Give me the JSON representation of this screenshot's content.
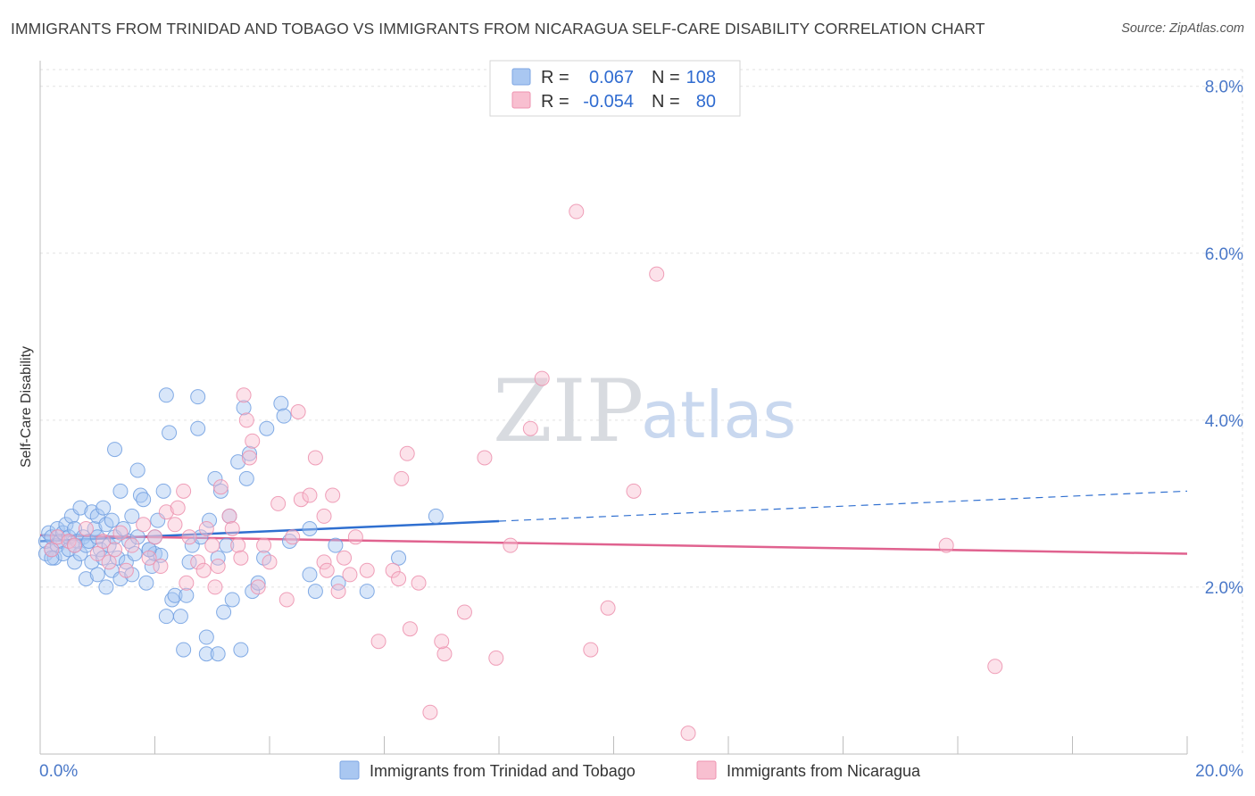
{
  "title": "IMMIGRANTS FROM TRINIDAD AND TOBAGO VS IMMIGRANTS FROM NICARAGUA SELF-CARE DISABILITY CORRELATION CHART",
  "source": "Source: ZipAtlas.com",
  "watermark": {
    "zip": "ZIP",
    "atlas": "atlas"
  },
  "legend": {
    "r_label": "R =",
    "n_label": "N =",
    "entries": [
      {
        "r": "0.067",
        "n": "108",
        "color": "#a9c7f1",
        "stroke": "#7da6e3"
      },
      {
        "r": "-0.054",
        "n": "80",
        "color": "#f8bfd0",
        "stroke": "#ee93b0"
      }
    ]
  },
  "chart_data": {
    "type": "scatter",
    "xlabel": "",
    "ylabel": "Self-Care Disability",
    "xlim": [
      0,
      20
    ],
    "ylim": [
      0,
      8.2
    ],
    "x_ticks": [
      {
        "v": 0,
        "label": "0.0%"
      },
      {
        "v": 20,
        "label": "20.0%"
      }
    ],
    "y_ticks": [
      {
        "v": 2,
        "label": "2.0%"
      },
      {
        "v": 4,
        "label": "4.0%"
      },
      {
        "v": 6,
        "label": "6.0%"
      },
      {
        "v": 8,
        "label": "8.0%"
      }
    ],
    "grid": true,
    "series": [
      {
        "name": "Immigrants from Trinidad and Tobago",
        "color": "#a9c7f1",
        "stroke": "#6f9de0",
        "trend": {
          "x0": 0,
          "y0": 2.55,
          "x1": 8,
          "y1": 2.79,
          "dash_x1": 20,
          "dash_y1": 3.15,
          "color": "#2f6fd0"
        },
        "points": [
          [
            0.1,
            2.4
          ],
          [
            0.1,
            2.55
          ],
          [
            0.15,
            2.65
          ],
          [
            0.2,
            2.45
          ],
          [
            0.2,
            2.6
          ],
          [
            0.25,
            2.35
          ],
          [
            0.3,
            2.5
          ],
          [
            0.3,
            2.7
          ],
          [
            0.35,
            2.55
          ],
          [
            0.4,
            2.4
          ],
          [
            0.4,
            2.65
          ],
          [
            0.45,
            2.75
          ],
          [
            0.5,
            2.6
          ],
          [
            0.5,
            2.45
          ],
          [
            0.55,
            2.85
          ],
          [
            0.6,
            2.3
          ],
          [
            0.6,
            2.7
          ],
          [
            0.65,
            2.55
          ],
          [
            0.7,
            2.95
          ],
          [
            0.7,
            2.4
          ],
          [
            0.75,
            2.6
          ],
          [
            0.8,
            2.1
          ],
          [
            0.8,
            2.5
          ],
          [
            0.85,
            2.55
          ],
          [
            0.9,
            2.9
          ],
          [
            0.9,
            2.3
          ],
          [
            0.95,
            2.7
          ],
          [
            1.0,
            2.15
          ],
          [
            1.0,
            2.85
          ],
          [
            1.0,
            2.6
          ],
          [
            1.05,
            2.45
          ],
          [
            1.1,
            2.95
          ],
          [
            1.1,
            2.35
          ],
          [
            1.15,
            2.0
          ],
          [
            1.15,
            2.75
          ],
          [
            1.2,
            2.5
          ],
          [
            1.25,
            2.2
          ],
          [
            1.25,
            2.8
          ],
          [
            1.3,
            2.6
          ],
          [
            1.3,
            3.65
          ],
          [
            1.35,
            2.35
          ],
          [
            1.4,
            3.15
          ],
          [
            1.4,
            2.1
          ],
          [
            1.45,
            2.7
          ],
          [
            1.5,
            2.3
          ],
          [
            1.55,
            2.55
          ],
          [
            1.6,
            2.15
          ],
          [
            1.6,
            2.85
          ],
          [
            1.65,
            2.4
          ],
          [
            1.7,
            3.4
          ],
          [
            1.7,
            2.6
          ],
          [
            1.75,
            3.1
          ],
          [
            1.8,
            3.05
          ],
          [
            1.85,
            2.05
          ],
          [
            1.9,
            2.45
          ],
          [
            1.95,
            2.25
          ],
          [
            2.0,
            2.6
          ],
          [
            2.0,
            2.4
          ],
          [
            2.05,
            2.8
          ],
          [
            2.1,
            2.38
          ],
          [
            2.15,
            3.15
          ],
          [
            2.2,
            1.65
          ],
          [
            2.2,
            4.3
          ],
          [
            2.25,
            3.85
          ],
          [
            2.3,
            1.85
          ],
          [
            2.35,
            1.9
          ],
          [
            2.45,
            1.65
          ],
          [
            2.5,
            1.25
          ],
          [
            2.55,
            1.9
          ],
          [
            2.6,
            2.3
          ],
          [
            2.65,
            2.5
          ],
          [
            2.75,
            3.9
          ],
          [
            2.75,
            4.28
          ],
          [
            2.8,
            2.6
          ],
          [
            2.9,
            1.2
          ],
          [
            2.9,
            1.4
          ],
          [
            2.95,
            2.8
          ],
          [
            3.05,
            3.3
          ],
          [
            3.15,
            3.15
          ],
          [
            3.1,
            2.35
          ],
          [
            3.1,
            1.2
          ],
          [
            3.2,
            1.7
          ],
          [
            3.25,
            2.5
          ],
          [
            3.3,
            2.85
          ],
          [
            3.35,
            1.85
          ],
          [
            3.45,
            3.5
          ],
          [
            3.5,
            1.25
          ],
          [
            3.55,
            4.15
          ],
          [
            3.6,
            3.3
          ],
          [
            3.65,
            3.6
          ],
          [
            3.7,
            1.95
          ],
          [
            3.8,
            2.05
          ],
          [
            3.9,
            2.35
          ],
          [
            3.95,
            3.9
          ],
          [
            4.2,
            4.2
          ],
          [
            4.25,
            4.05
          ],
          [
            4.35,
            2.55
          ],
          [
            4.7,
            2.7
          ],
          [
            4.7,
            2.15
          ],
          [
            4.8,
            1.95
          ],
          [
            5.15,
            2.5
          ],
          [
            5.2,
            2.05
          ],
          [
            5.7,
            1.95
          ],
          [
            6.25,
            2.35
          ],
          [
            6.9,
            2.85
          ],
          [
            0.2,
            2.35
          ],
          [
            0.6,
            2.5
          ],
          [
            1.9,
            2.45
          ]
        ]
      },
      {
        "name": "Immigrants from Nicaragua",
        "color": "#f8bfd0",
        "stroke": "#ec8fad",
        "trend": {
          "x0": 0,
          "y0": 2.62,
          "x1": 20,
          "y1": 2.4,
          "color": "#e0628f"
        },
        "points": [
          [
            0.2,
            2.45
          ],
          [
            0.3,
            2.6
          ],
          [
            0.5,
            2.55
          ],
          [
            0.6,
            2.5
          ],
          [
            0.8,
            2.7
          ],
          [
            1.0,
            2.4
          ],
          [
            1.1,
            2.55
          ],
          [
            1.2,
            2.3
          ],
          [
            1.4,
            2.65
          ],
          [
            1.5,
            2.2
          ],
          [
            1.6,
            2.5
          ],
          [
            1.8,
            2.75
          ],
          [
            1.9,
            2.35
          ],
          [
            2.0,
            2.6
          ],
          [
            2.1,
            2.25
          ],
          [
            2.2,
            2.9
          ],
          [
            2.35,
            2.75
          ],
          [
            2.5,
            3.15
          ],
          [
            2.55,
            2.05
          ],
          [
            2.6,
            2.6
          ],
          [
            2.75,
            2.3
          ],
          [
            2.85,
            2.2
          ],
          [
            2.9,
            2.7
          ],
          [
            3.0,
            2.5
          ],
          [
            3.05,
            2.0
          ],
          [
            3.15,
            3.2
          ],
          [
            3.1,
            2.25
          ],
          [
            3.3,
            2.85
          ],
          [
            3.35,
            2.7
          ],
          [
            3.45,
            2.5
          ],
          [
            3.5,
            2.35
          ],
          [
            3.55,
            4.3
          ],
          [
            3.6,
            4.0
          ],
          [
            3.65,
            3.55
          ],
          [
            3.7,
            3.75
          ],
          [
            3.8,
            2.0
          ],
          [
            3.9,
            2.5
          ],
          [
            4.0,
            2.3
          ],
          [
            4.15,
            3.0
          ],
          [
            4.3,
            1.85
          ],
          [
            4.4,
            2.6
          ],
          [
            4.5,
            4.1
          ],
          [
            4.55,
            3.05
          ],
          [
            4.7,
            3.1
          ],
          [
            4.8,
            3.55
          ],
          [
            4.95,
            2.3
          ],
          [
            5.0,
            2.2
          ],
          [
            5.1,
            3.1
          ],
          [
            5.2,
            1.95
          ],
          [
            5.3,
            2.35
          ],
          [
            5.4,
            2.15
          ],
          [
            5.5,
            2.6
          ],
          [
            5.7,
            2.2
          ],
          [
            5.9,
            1.35
          ],
          [
            6.15,
            2.2
          ],
          [
            6.25,
            2.1
          ],
          [
            6.3,
            3.3
          ],
          [
            6.4,
            3.6
          ],
          [
            6.45,
            1.5
          ],
          [
            6.6,
            2.05
          ],
          [
            6.8,
            0.5
          ],
          [
            7.05,
            1.2
          ],
          [
            7.0,
            1.35
          ],
          [
            7.4,
            1.7
          ],
          [
            7.75,
            3.55
          ],
          [
            7.95,
            1.15
          ],
          [
            8.2,
            2.5
          ],
          [
            8.55,
            3.9
          ],
          [
            8.75,
            4.5
          ],
          [
            9.35,
            6.5
          ],
          [
            9.6,
            1.25
          ],
          [
            9.9,
            1.75
          ],
          [
            10.35,
            3.15
          ],
          [
            10.75,
            5.75
          ],
          [
            11.3,
            0.25
          ],
          [
            15.8,
            2.5
          ],
          [
            16.65,
            1.05
          ],
          [
            2.4,
            2.95
          ],
          [
            1.3,
            2.45
          ],
          [
            4.95,
            2.85
          ]
        ]
      }
    ]
  }
}
